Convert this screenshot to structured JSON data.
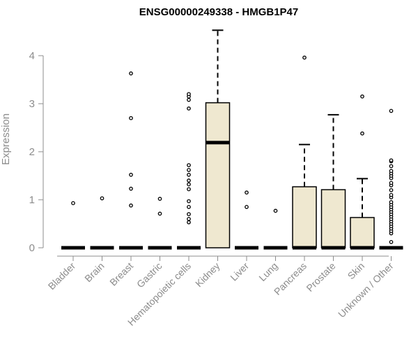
{
  "chart_data": {
    "type": "box",
    "title": "ENSG00000249338 - HMGB1P47",
    "xlabel": "",
    "ylabel": "Expression",
    "ylim": [
      0,
      4.5
    ],
    "yticks": [
      0,
      1,
      2,
      3,
      4
    ],
    "grid": false,
    "colors": {
      "box_fill": "#efe8d0",
      "stroke": "#000000",
      "axis": "#8c8c8c"
    },
    "categories": [
      "Bladder",
      "Brain",
      "Breast",
      "Gastric",
      "Hematopoietic cells",
      "Kidney",
      "Liver",
      "Lung",
      "Pancreas",
      "Prostate",
      "Skin",
      "Unknown / Other"
    ],
    "boxes": [
      {
        "q1": 0,
        "median": 0,
        "q3": 0,
        "whisker_low": 0,
        "whisker_high": 0,
        "outliers": [
          0.93
        ]
      },
      {
        "q1": 0,
        "median": 0,
        "q3": 0,
        "whisker_low": 0,
        "whisker_high": 0,
        "outliers": [
          1.03
        ]
      },
      {
        "q1": 0,
        "median": 0,
        "q3": 0,
        "whisker_low": 0,
        "whisker_high": 0,
        "outliers": [
          0.88,
          1.23,
          1.52,
          2.7,
          3.63
        ]
      },
      {
        "q1": 0,
        "median": 0,
        "q3": 0,
        "whisker_low": 0,
        "whisker_high": 0,
        "outliers": [
          0.71,
          1.02
        ]
      },
      {
        "q1": 0,
        "median": 0,
        "q3": 0,
        "whisker_low": 0,
        "whisker_high": 0,
        "outliers": [
          0.53,
          0.6,
          0.7,
          0.85,
          0.97,
          1.22,
          1.32,
          1.4,
          1.52,
          1.62,
          1.72,
          2.9,
          3.08,
          3.15,
          3.2
        ]
      },
      {
        "q1": 0,
        "median": 2.19,
        "q3": 3.02,
        "whisker_low": 0,
        "whisker_high": 4.53,
        "outliers": []
      },
      {
        "q1": 0,
        "median": 0,
        "q3": 0,
        "whisker_low": 0,
        "whisker_high": 0,
        "outliers": [
          0.85,
          1.15
        ]
      },
      {
        "q1": 0,
        "median": 0,
        "q3": 0,
        "whisker_low": 0,
        "whisker_high": 0,
        "outliers": [
          0.77
        ]
      },
      {
        "q1": 0,
        "median": 0,
        "q3": 1.27,
        "whisker_low": 0,
        "whisker_high": 2.15,
        "outliers": [
          3.96
        ]
      },
      {
        "q1": 0,
        "median": 0,
        "q3": 1.21,
        "whisker_low": 0,
        "whisker_high": 2.77,
        "outliers": []
      },
      {
        "q1": 0,
        "median": 0,
        "q3": 0.63,
        "whisker_low": 0,
        "whisker_high": 1.44,
        "outliers": [
          2.38,
          3.15
        ]
      },
      {
        "q1": 0,
        "median": 0,
        "q3": 0,
        "whisker_low": 0,
        "whisker_high": 0,
        "outliers": [
          0.12,
          0.3,
          0.35,
          0.4,
          0.45,
          0.5,
          0.55,
          0.6,
          0.65,
          0.7,
          0.75,
          0.8,
          0.85,
          0.9,
          0.95,
          1.05,
          1.1,
          1.2,
          1.3,
          1.35,
          1.45,
          1.5,
          1.55,
          1.6,
          1.7,
          1.8,
          1.82,
          2.85
        ]
      }
    ]
  }
}
